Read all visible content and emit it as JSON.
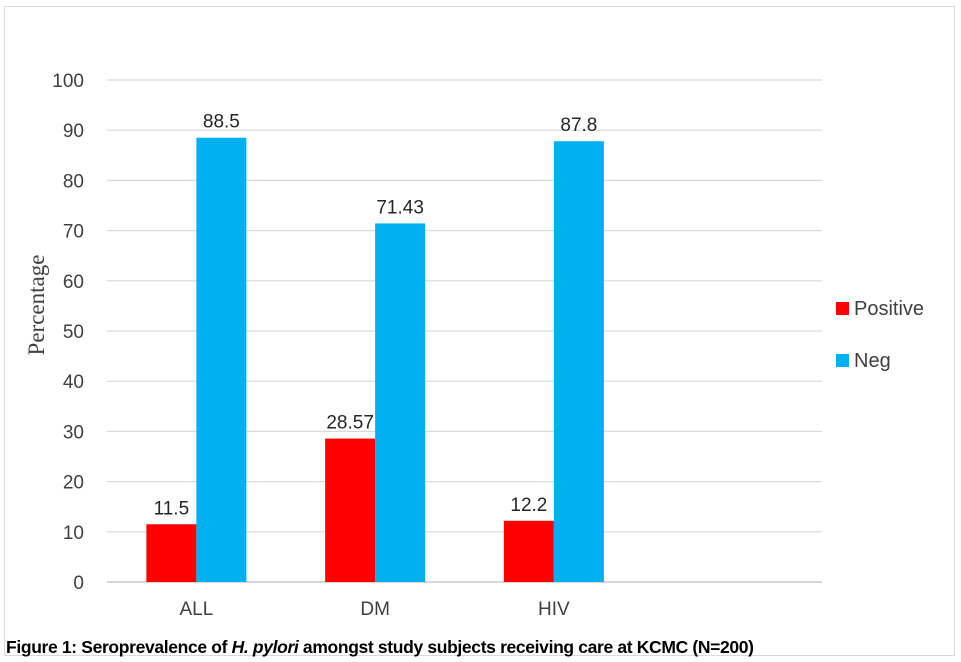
{
  "chart_data": {
    "type": "bar",
    "title": "",
    "xlabel": "",
    "ylabel": "Percentage",
    "ylim": [
      0,
      100
    ],
    "yticks": [
      0,
      10,
      20,
      30,
      40,
      50,
      60,
      70,
      80,
      90,
      100
    ],
    "categories": [
      "ALL",
      "DM",
      "HIV"
    ],
    "series": [
      {
        "name": "Positive",
        "color": "#ff0000",
        "values": [
          11.5,
          28.57,
          12.2
        ],
        "labels": [
          "11.5",
          "28.57",
          "12.2"
        ]
      },
      {
        "name": "Neg",
        "color": "#00b0f0",
        "values": [
          88.5,
          71.43,
          87.8
        ],
        "labels": [
          "88.5",
          "71.43",
          "87.8"
        ]
      }
    ],
    "grid": true,
    "legend_position": "right"
  },
  "caption": {
    "prefix": "Figure 1: Seroprevalence of ",
    "species": "H. pylori",
    "suffix": " amongst study subjects receiving care at KCMC (N=200)"
  }
}
